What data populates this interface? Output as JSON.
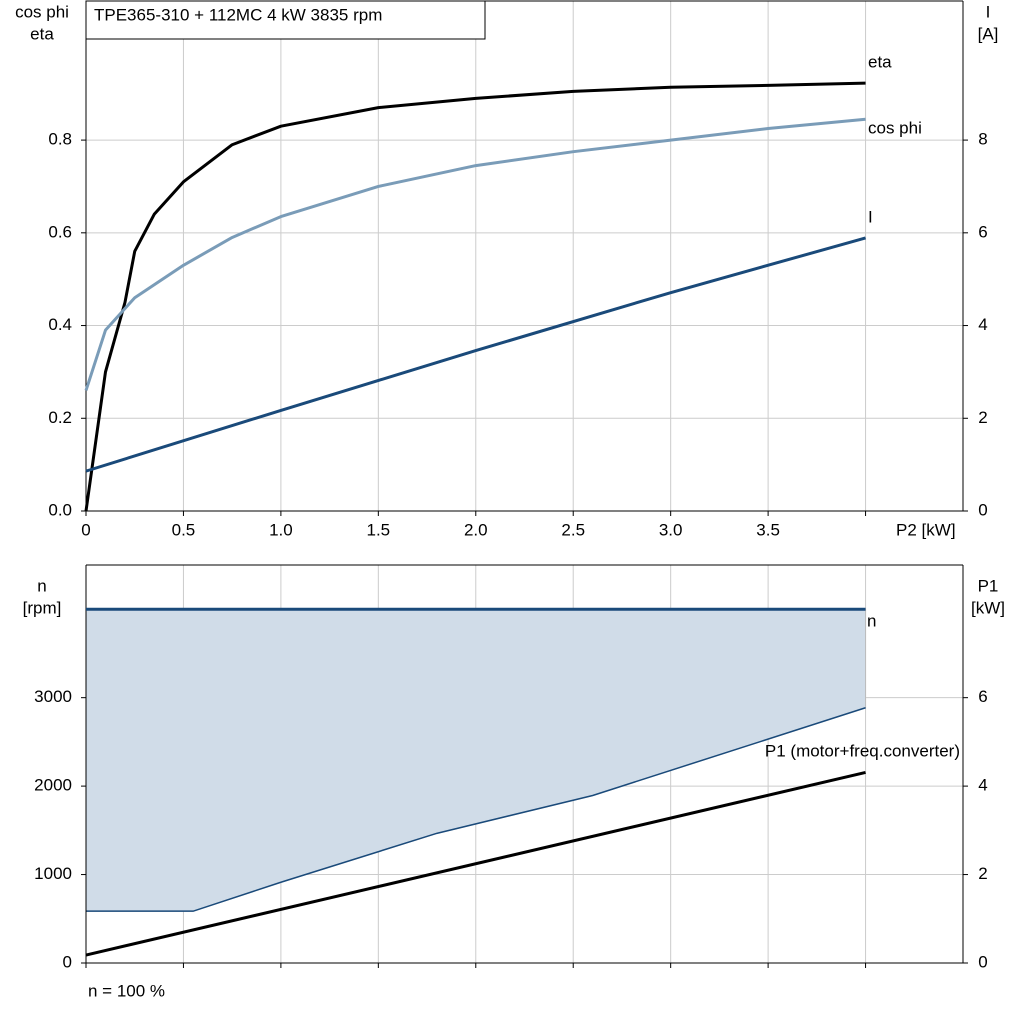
{
  "header": "TPE365-310 + 112MC   4 kW   3835 rpm",
  "footnote": "n = 100 %",
  "chart_data": [
    {
      "type": "line",
      "y_label": [
        "cos phi",
        "eta"
      ],
      "y2_label": [
        "I",
        "[A]"
      ],
      "xlim": [
        0,
        4.5
      ],
      "ylim": [
        0,
        1.1
      ],
      "y2lim": [
        0,
        11
      ],
      "xticks": [
        {
          "value": 0,
          "label": "0"
        },
        0.5,
        {
          "value": 1,
          "label": "1.0"
        },
        1.5,
        {
          "value": 2,
          "label": "2.0"
        },
        2.5,
        {
          "value": 3,
          "label": "3.0"
        },
        3.5,
        {
          "value": 4,
          "label": "P2 [kW]"
        }
      ],
      "yticks": [
        {
          "value": 0,
          "label": "0.0"
        },
        0.2,
        0.4,
        0.6,
        0.8
      ],
      "y2ticks": [
        0,
        2,
        4,
        6,
        8
      ],
      "grid": true,
      "series": [
        {
          "name": "eta",
          "color": "#000000",
          "x": [
            0,
            0.1,
            0.2,
            0.25,
            0.35,
            0.5,
            0.75,
            1.0,
            1.5,
            2.0,
            2.5,
            3.0,
            3.5,
            4.0
          ],
          "values": [
            0,
            0.3,
            0.45,
            0.56,
            0.64,
            0.71,
            0.79,
            0.83,
            0.87,
            0.89,
            0.905,
            0.914,
            0.918,
            0.923
          ]
        },
        {
          "name": "cos phi",
          "color": "#7a9cb8",
          "x": [
            0,
            0.1,
            0.25,
            0.5,
            0.75,
            1.0,
            1.5,
            2.0,
            2.5,
            3.0,
            3.5,
            4.0
          ],
          "values": [
            0.26,
            0.39,
            0.46,
            0.53,
            0.59,
            0.635,
            0.7,
            0.745,
            0.775,
            0.8,
            0.825,
            0.845
          ]
        },
        {
          "name": "I",
          "color": "#1a4a7a",
          "axis": "y2",
          "x": [
            0,
            1.0,
            2.0,
            3.0,
            4.0
          ],
          "values": [
            0.86,
            2.17,
            3.46,
            4.71,
            5.89
          ]
        }
      ]
    },
    {
      "type": "line",
      "y_label": [
        "n",
        "[rpm]"
      ],
      "y2_label": [
        "P1",
        "[kW]"
      ],
      "xlim": [
        0,
        4.5
      ],
      "ylim": [
        0,
        4500
      ],
      "y2lim": [
        0,
        9
      ],
      "xticks": [
        0,
        0.5,
        1,
        1.5,
        2,
        2.5,
        3,
        3.5,
        4
      ],
      "xtick_labels": false,
      "yticks": [
        0,
        1000,
        2000,
        3000
      ],
      "y2ticks": [
        0,
        2,
        4,
        6
      ],
      "grid": true,
      "band": {
        "color": "#d0dce8",
        "line_color": "#1a4a7a",
        "x": [
          0,
          0.55,
          1.0,
          1.8,
          2.6,
          4.0
        ],
        "values": [
          586,
          586,
          913,
          1466,
          1894,
          2886
        ]
      },
      "series": [
        {
          "name": "n",
          "color": "#1a4a7a",
          "x": [
            0,
            4.0
          ],
          "values": [
            4000,
            4000
          ]
        },
        {
          "name": "P1 (motor+freq.converter)",
          "color": "#000000",
          "axis": "y2",
          "x": [
            0,
            4.0
          ],
          "values": [
            0.18,
            4.31
          ]
        }
      ]
    }
  ]
}
